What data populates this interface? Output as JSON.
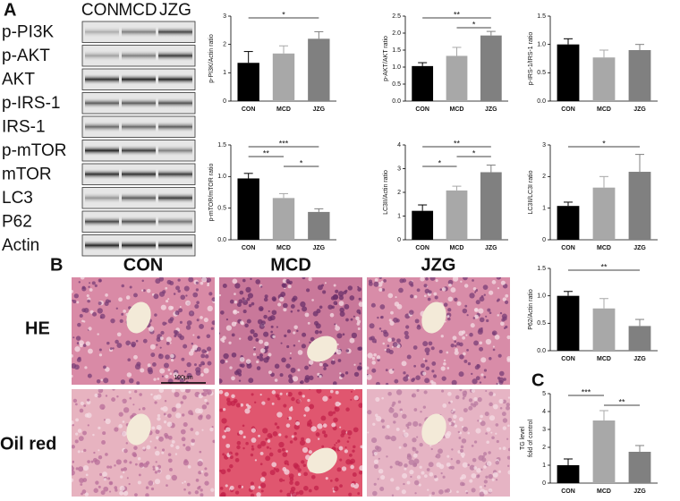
{
  "panel_labels": [
    "A",
    "B",
    "C"
  ],
  "blot": {
    "columns": [
      "CON",
      "MCD",
      "JZG"
    ],
    "rows": [
      "p-PI3K",
      "p-AKT",
      "AKT",
      "p-IRS-1",
      "IRS-1",
      "p-mTOR",
      "mTOR",
      "LC3",
      "P62",
      "Actin"
    ]
  },
  "histology": {
    "columns": [
      "CON",
      "MCD",
      "JZG"
    ],
    "rows": [
      "HE",
      "Oil red"
    ],
    "scale_bar": "100μm"
  },
  "chart_data": [
    {
      "type": "bar",
      "ylabel": [
        "p-PI3K/Actin ratio"
      ],
      "categories": [
        "CON",
        "MCD",
        "JZG"
      ],
      "values": [
        1.35,
        1.68,
        2.2
      ],
      "errors": [
        0.4,
        0.27,
        0.25
      ],
      "colors": [
        "#000000",
        "#a8a8a8",
        "#808080"
      ],
      "ylim": [
        0,
        3
      ],
      "yticks": [
        0,
        1,
        2,
        3
      ],
      "significance": [
        {
          "pair": [
            0,
            2
          ],
          "label": "*"
        }
      ]
    },
    {
      "type": "bar",
      "ylabel": [
        "p-AKT/AKT ratio"
      ],
      "categories": [
        "CON",
        "MCD",
        "JZG"
      ],
      "values": [
        1.03,
        1.33,
        1.93
      ],
      "errors": [
        0.1,
        0.25,
        0.12
      ],
      "colors": [
        "#000000",
        "#a8a8a8",
        "#808080"
      ],
      "ylim": [
        0,
        2.5
      ],
      "yticks": [
        {
          "value": 0,
          "label": "0.0"
        },
        0.5,
        {
          "value": 1,
          "label": "1.0"
        },
        1.5,
        {
          "value": 2,
          "label": "2.0"
        },
        2.5
      ],
      "significance": [
        {
          "pair": [
            0,
            2
          ],
          "label": "**"
        },
        {
          "pair": [
            1,
            2
          ],
          "label": "*"
        }
      ]
    },
    {
      "type": "bar",
      "ylabel": [
        "p-IRS-1/IRS-1 ratio"
      ],
      "categories": [
        "CON",
        "MCD",
        "JZG"
      ],
      "values": [
        1.0,
        0.77,
        0.9
      ],
      "errors": [
        0.1,
        0.13,
        0.1
      ],
      "colors": [
        "#000000",
        "#a8a8a8",
        "#808080"
      ],
      "ylim": [
        0,
        1.5
      ],
      "yticks": [
        {
          "value": 0,
          "label": "0.0"
        },
        0.5,
        {
          "value": 1,
          "label": "1.0"
        },
        1.5
      ],
      "significance": []
    },
    {
      "type": "bar",
      "ylabel": [
        "p-mTOR/mTOR ratio"
      ],
      "categories": [
        "CON",
        "MCD",
        "JZG"
      ],
      "values": [
        0.97,
        0.66,
        0.44
      ],
      "errors": [
        0.08,
        0.07,
        0.05
      ],
      "colors": [
        "#000000",
        "#a8a8a8",
        "#808080"
      ],
      "ylim": [
        0,
        1.5
      ],
      "yticks": [
        {
          "value": 0,
          "label": "0.0"
        },
        0.5,
        {
          "value": 1,
          "label": "1.0"
        },
        1.5
      ],
      "significance": [
        {
          "pair": [
            0,
            2
          ],
          "label": "***"
        },
        {
          "pair": [
            0,
            1
          ],
          "label": "**"
        },
        {
          "pair": [
            1,
            2
          ],
          "label": "*"
        }
      ]
    },
    {
      "type": "bar",
      "ylabel": [
        "LC3II/Actin ratio"
      ],
      "categories": [
        "CON",
        "MCD",
        "JZG"
      ],
      "values": [
        1.22,
        2.08,
        2.85
      ],
      "errors": [
        0.25,
        0.18,
        0.3
      ],
      "colors": [
        "#000000",
        "#a8a8a8",
        "#808080"
      ],
      "ylim": [
        0,
        4
      ],
      "yticks": [
        0,
        1,
        2,
        3,
        4
      ],
      "significance": [
        {
          "pair": [
            0,
            2
          ],
          "label": "**"
        },
        {
          "pair": [
            1,
            2
          ],
          "label": "*"
        },
        {
          "pair": [
            0,
            1
          ],
          "label": "*"
        }
      ]
    },
    {
      "type": "bar",
      "ylabel": [
        "LC3II/LC3I ratio"
      ],
      "categories": [
        "CON",
        "MCD",
        "JZG"
      ],
      "values": [
        1.07,
        1.65,
        2.15
      ],
      "errors": [
        0.12,
        0.35,
        0.55
      ],
      "colors": [
        "#000000",
        "#a8a8a8",
        "#808080"
      ],
      "ylim": [
        0,
        3
      ],
      "yticks": [
        0,
        1,
        2,
        3
      ],
      "significance": [
        {
          "pair": [
            0,
            2
          ],
          "label": "*"
        }
      ]
    },
    {
      "type": "bar",
      "ylabel": [
        "P62/Actin ratio"
      ],
      "categories": [
        "CON",
        "MCD",
        "JZG"
      ],
      "values": [
        1.0,
        0.77,
        0.45
      ],
      "errors": [
        0.08,
        0.18,
        0.12
      ],
      "colors": [
        "#000000",
        "#a8a8a8",
        "#808080"
      ],
      "ylim": [
        0,
        1.5
      ],
      "yticks": [
        {
          "value": 0,
          "label": "0.0"
        },
        0.5,
        {
          "value": 1,
          "label": "1.0"
        },
        1.5
      ],
      "significance": [
        {
          "pair": [
            0,
            2
          ],
          "label": "**"
        }
      ]
    },
    {
      "type": "bar",
      "ylabel": [
        "TG level",
        "fold of control"
      ],
      "categories": [
        "CON",
        "MCD",
        "JZG"
      ],
      "values": [
        1.0,
        3.5,
        1.75
      ],
      "errors": [
        0.35,
        0.55,
        0.35
      ],
      "colors": [
        "#000000",
        "#a8a8a8",
        "#808080"
      ],
      "ylim": [
        0,
        5
      ],
      "yticks": [
        0,
        1,
        2,
        3,
        4,
        5
      ],
      "significance": [
        {
          "pair": [
            0,
            1
          ],
          "label": "***"
        },
        {
          "pair": [
            1,
            2
          ],
          "label": "**"
        }
      ]
    }
  ]
}
